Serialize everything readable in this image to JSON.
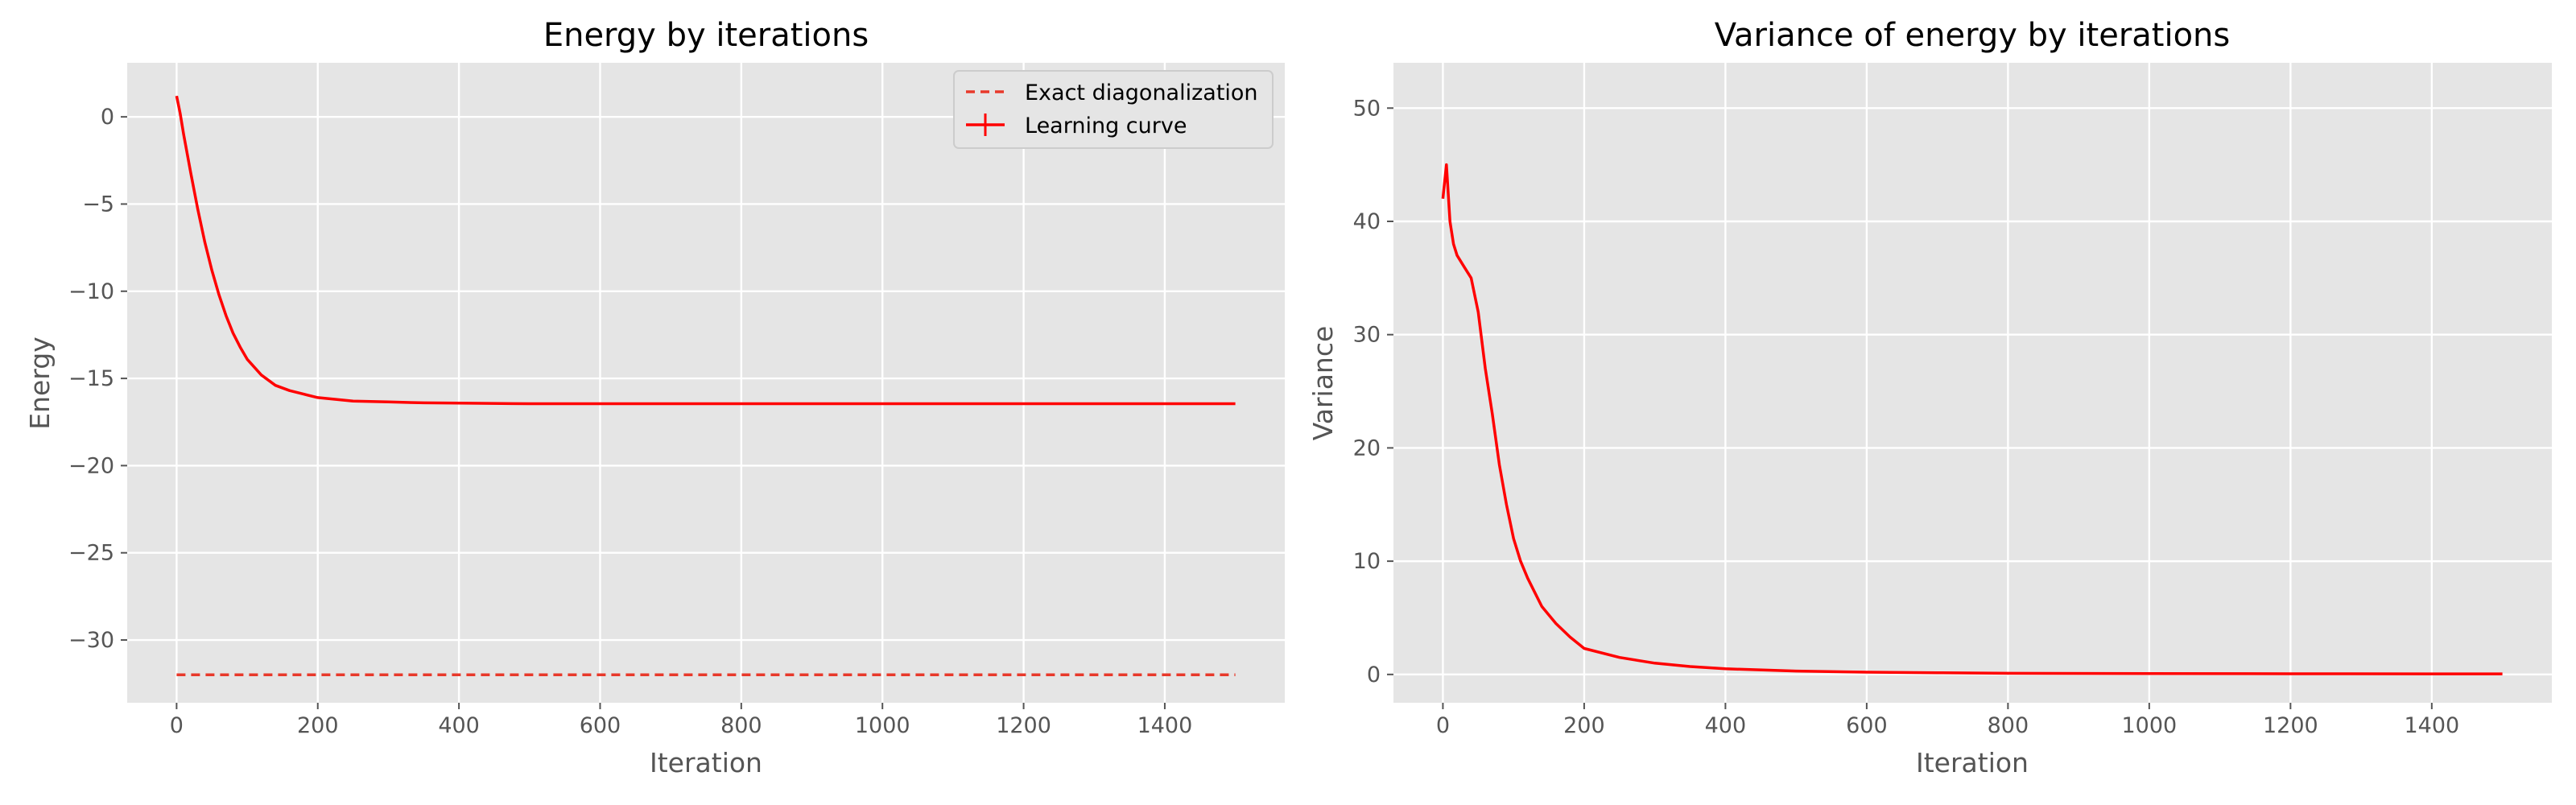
{
  "chart_data": [
    {
      "id": "energy",
      "type": "line",
      "title": "Energy by iterations",
      "xlabel": "Iteration",
      "ylabel": "Energy",
      "xlim": [
        -70,
        1570
      ],
      "ylim": [
        -33.6,
        3.1
      ],
      "xticks": [
        0,
        200,
        400,
        600,
        800,
        1000,
        1200,
        1400
      ],
      "xtick_labels": [
        "0",
        "200",
        "400",
        "600",
        "800",
        "1000",
        "1200",
        "1400"
      ],
      "yticks": [
        0,
        -5,
        -10,
        -15,
        -20,
        -25,
        -30
      ],
      "ytick_labels": [
        "0",
        "−5",
        "−10",
        "−15",
        "−20",
        "−25",
        "−30"
      ],
      "grid": true,
      "legend_position": "top-right",
      "series": [
        {
          "name": "Exact diagonalization",
          "style": "dashed",
          "color": "#e8392b",
          "x": [
            0,
            1500
          ],
          "y": [
            -32.0,
            -32.0
          ]
        },
        {
          "name": "Learning curve",
          "style": "solid-errorbar",
          "color": "#ff0000",
          "x": [
            0,
            5,
            10,
            20,
            30,
            40,
            50,
            60,
            70,
            80,
            90,
            100,
            120,
            140,
            160,
            180,
            200,
            250,
            300,
            350,
            400,
            500,
            600,
            800,
            1000,
            1200,
            1400,
            1500
          ],
          "y": [
            1.2,
            0.2,
            -1.0,
            -3.2,
            -5.3,
            -7.2,
            -8.8,
            -10.2,
            -11.4,
            -12.4,
            -13.2,
            -13.9,
            -14.8,
            -15.4,
            -15.7,
            -15.9,
            -16.1,
            -16.3,
            -16.35,
            -16.4,
            -16.42,
            -16.45,
            -16.45,
            -16.45,
            -16.45,
            -16.45,
            -16.45,
            -16.45
          ]
        }
      ]
    },
    {
      "id": "variance",
      "type": "line",
      "title": "Variance of energy by iterations",
      "xlabel": "Iteration",
      "ylabel": "Variance",
      "xlim": [
        -70,
        1570
      ],
      "ylim": [
        -2.5,
        54
      ],
      "xticks": [
        0,
        200,
        400,
        600,
        800,
        1000,
        1200,
        1400
      ],
      "xtick_labels": [
        "0",
        "200",
        "400",
        "600",
        "800",
        "1000",
        "1200",
        "1400"
      ],
      "yticks": [
        0,
        10,
        20,
        30,
        40,
        50
      ],
      "ytick_labels": [
        "0",
        "10",
        "20",
        "30",
        "40",
        "50"
      ],
      "grid": true,
      "series": [
        {
          "style": "solid",
          "color": "#ff0000",
          "x": [
            0,
            5,
            10,
            15,
            20,
            30,
            40,
            50,
            60,
            70,
            80,
            90,
            100,
            110,
            120,
            140,
            160,
            180,
            200,
            250,
            300,
            350,
            400,
            500,
            600,
            700,
            800,
            1000,
            1200,
            1400,
            1500
          ],
          "y": [
            42,
            45,
            40,
            38,
            37,
            36,
            35,
            32,
            27,
            23,
            18.5,
            15,
            12,
            10,
            8.5,
            6,
            4.5,
            3.3,
            2.3,
            1.5,
            1.0,
            0.7,
            0.5,
            0.3,
            0.2,
            0.15,
            0.1,
            0.08,
            0.06,
            0.05,
            0.05
          ]
        }
      ]
    }
  ]
}
